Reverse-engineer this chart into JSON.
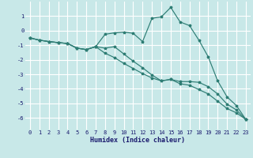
{
  "xlabel": "Humidex (Indice chaleur)",
  "background_color": "#c8e8e8",
  "grid_color": "#ffffff",
  "line_color": "#2e7d74",
  "xlim": [
    -0.5,
    23.5
  ],
  "ylim": [
    -6.8,
    2.0
  ],
  "yticks": [
    -6,
    -5,
    -4,
    -3,
    -2,
    -1,
    0,
    1
  ],
  "xticks": [
    0,
    1,
    2,
    3,
    4,
    5,
    6,
    7,
    8,
    9,
    10,
    11,
    12,
    13,
    14,
    15,
    16,
    17,
    18,
    19,
    20,
    21,
    22,
    23
  ],
  "series": {
    "line1": {
      "x": [
        0,
        1,
        2,
        3,
        4,
        5,
        6,
        7,
        8,
        9,
        10,
        11,
        12,
        13,
        14,
        15,
        16,
        17,
        18,
        19,
        20,
        21,
        22,
        23
      ],
      "y": [
        -0.5,
        -0.65,
        -0.75,
        -0.82,
        -0.88,
        -1.2,
        -1.3,
        -1.1,
        -0.25,
        -0.15,
        -0.1,
        -0.18,
        -0.75,
        0.85,
        0.95,
        1.6,
        0.6,
        0.35,
        -0.65,
        -1.8,
        -3.45,
        -4.55,
        -5.15,
        -6.1
      ]
    },
    "line2": {
      "x": [
        0,
        1,
        2,
        3,
        4,
        5,
        6,
        7,
        8,
        9,
        10,
        11,
        12,
        13,
        14,
        15,
        16,
        17,
        18,
        19,
        20,
        21,
        22,
        23
      ],
      "y": [
        -0.5,
        -0.65,
        -0.75,
        -0.82,
        -0.88,
        -1.2,
        -1.3,
        -1.1,
        -1.2,
        -1.1,
        -1.6,
        -2.1,
        -2.55,
        -3.05,
        -3.45,
        -3.35,
        -3.5,
        -3.5,
        -3.55,
        -3.85,
        -4.35,
        -5.05,
        -5.45,
        -6.1
      ]
    },
    "line3": {
      "x": [
        0,
        1,
        2,
        3,
        4,
        5,
        6,
        7,
        8,
        9,
        10,
        11,
        12,
        13,
        14,
        15,
        16,
        17,
        18,
        19,
        20,
        21,
        22,
        23
      ],
      "y": [
        -0.5,
        -0.65,
        -0.75,
        -0.82,
        -0.88,
        -1.2,
        -1.3,
        -1.1,
        -1.55,
        -1.85,
        -2.25,
        -2.6,
        -2.95,
        -3.25,
        -3.45,
        -3.35,
        -3.65,
        -3.75,
        -4.05,
        -4.35,
        -4.85,
        -5.35,
        -5.65,
        -6.1
      ]
    }
  }
}
